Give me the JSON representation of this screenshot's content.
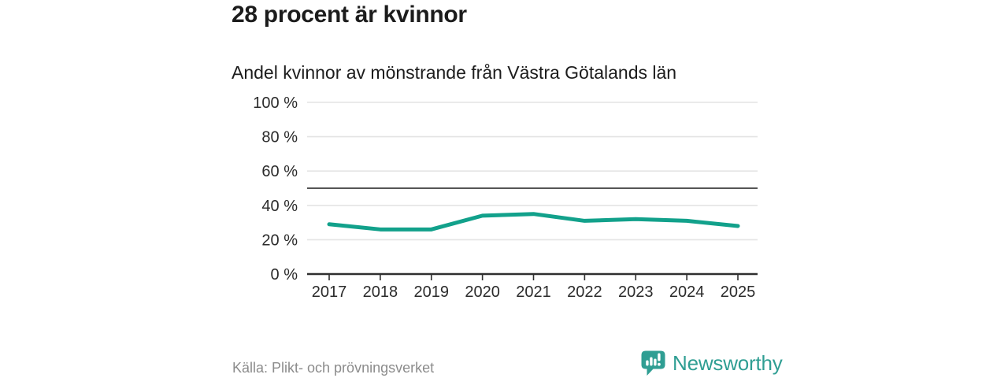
{
  "header": {
    "title": "28 procent är kvinnor",
    "subtitle": "Andel kvinnor av mönstrande från Västra Götalands län"
  },
  "footer": {
    "source": "Källa: Plikt- och prövningsverket",
    "brand": "Newsworthy"
  },
  "colors": {
    "line": "#12a18b",
    "brand": "#2f9e93",
    "grid": "#e4e4e4",
    "axis": "#2f2f2f",
    "reference_line": "#555555",
    "tick_label": "#2b2b2b",
    "source_text": "#8c8c8c"
  },
  "chart_data": {
    "type": "line",
    "title": "28 procent är kvinnor",
    "subtitle": "Andel kvinnor av mönstrande från Västra Götalands län",
    "x": [
      "2017",
      "2018",
      "2019",
      "2020",
      "2021",
      "2022",
      "2023",
      "2024",
      "2025"
    ],
    "series": [
      {
        "values": [
          29,
          26,
          26,
          34,
          35,
          31,
          32,
          31,
          28
        ]
      }
    ],
    "ylim": [
      0,
      100
    ],
    "yticks": [
      0,
      20,
      40,
      60,
      80,
      100
    ],
    "ytick_suffix": " %",
    "reference_line": 50,
    "grid": true,
    "legend": "none"
  }
}
